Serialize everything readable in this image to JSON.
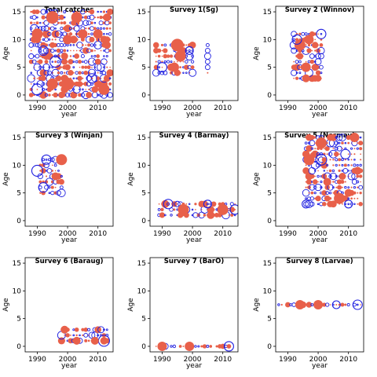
{
  "figure": {
    "colors": {
      "positive": "#e8604a",
      "negative": "#1f1fe0",
      "frame": "#000000"
    }
  },
  "chart_data": [
    {
      "type": "scatter",
      "title": "Total catches",
      "xlabel": "year",
      "ylabel": "Age",
      "xlim": [
        1986,
        2015
      ],
      "ylim": [
        -1,
        16
      ],
      "xticks": [
        1990,
        2000,
        2010
      ],
      "yticks": [
        0,
        5,
        10,
        15
      ],
      "x_range": [
        1988,
        2014
      ],
      "age_range": [
        0,
        15
      ],
      "grid": false,
      "legend": "none",
      "blobs": [
        {
          "x": 1995,
          "y": 14,
          "r": 8,
          "s": "pos"
        },
        {
          "x": 2003,
          "y": 14,
          "r": 7,
          "s": "pos"
        },
        {
          "x": 1990,
          "y": 11,
          "r": 7,
          "s": "pos"
        },
        {
          "x": 2000,
          "y": 10,
          "r": 6,
          "s": "pos"
        },
        {
          "x": 2005,
          "y": 11,
          "r": 6,
          "s": "pos"
        },
        {
          "x": 1996,
          "y": 6,
          "r": 7,
          "s": "neg"
        },
        {
          "x": 2000,
          "y": 2,
          "r": 8,
          "s": "pos"
        },
        {
          "x": 1995,
          "y": 2,
          "r": 7,
          "s": "pos"
        },
        {
          "x": 1990,
          "y": 1,
          "r": 7,
          "s": "neg"
        },
        {
          "x": 2012,
          "y": 1,
          "r": 7,
          "s": "pos"
        },
        {
          "x": 2008,
          "y": 3,
          "r": 6,
          "s": "neg"
        },
        {
          "x": 2010,
          "y": 11,
          "r": 6,
          "s": "pos"
        },
        {
          "x": 2013,
          "y": 14,
          "r": 5,
          "s": "pos"
        },
        {
          "x": 1992,
          "y": 8,
          "r": 6,
          "s": "neg"
        }
      ]
    },
    {
      "type": "scatter",
      "title": "Survey 1(Sg)",
      "xlabel": "year",
      "ylabel": "Age",
      "xlim": [
        1986,
        2015
      ],
      "ylim": [
        -1,
        16
      ],
      "xticks": [
        1990,
        2000,
        2010
      ],
      "yticks": [
        0,
        5,
        10,
        15
      ],
      "x_range": [
        1988,
        2000
      ],
      "age_range": [
        4,
        9
      ],
      "grid": false,
      "legend": "none",
      "extra_points": [
        {
          "x": 2005,
          "y": 9,
          "r": 2,
          "s": "neg"
        },
        {
          "x": 2005,
          "y": 8,
          "r": 3,
          "s": "neg"
        },
        {
          "x": 2005,
          "y": 7,
          "r": 4,
          "s": "neg"
        },
        {
          "x": 2005,
          "y": 6,
          "r": 3,
          "s": "neg"
        },
        {
          "x": 2005,
          "y": 5,
          "r": 3,
          "s": "neg"
        },
        {
          "x": 2005,
          "y": 4,
          "r": 1,
          "s": "pos"
        }
      ],
      "blobs": [
        {
          "x": 1995,
          "y": 9,
          "r": 8,
          "s": "pos"
        },
        {
          "x": 1996,
          "y": 7,
          "r": 7,
          "s": "pos"
        },
        {
          "x": 1994,
          "y": 5,
          "r": 6,
          "s": "pos"
        },
        {
          "x": 1990,
          "y": 5,
          "r": 6,
          "s": "neg"
        },
        {
          "x": 1999,
          "y": 8,
          "r": 5,
          "s": "neg"
        }
      ]
    },
    {
      "type": "scatter",
      "title": "Survey 2 (Winnov)",
      "xlabel": "year",
      "ylabel": "Age",
      "xlim": [
        1986,
        2015
      ],
      "ylim": [
        -1,
        16
      ],
      "xticks": [
        1990,
        2000,
        2010
      ],
      "yticks": [
        0,
        5,
        10,
        15
      ],
      "x_range": [
        1992,
        2001
      ],
      "age_range": [
        3,
        11
      ],
      "grid": false,
      "legend": "none",
      "blobs": [
        {
          "x": 1994,
          "y": 9,
          "r": 7,
          "s": "pos"
        },
        {
          "x": 1996,
          "y": 5,
          "r": 6,
          "s": "pos"
        },
        {
          "x": 1997,
          "y": 10,
          "r": 6,
          "s": "pos"
        },
        {
          "x": 1993,
          "y": 10,
          "r": 6,
          "s": "neg"
        },
        {
          "x": 2001,
          "y": 11,
          "r": 6,
          "s": "neg"
        },
        {
          "x": 1996,
          "y": 3,
          "r": 5,
          "s": "pos"
        }
      ]
    },
    {
      "type": "scatter",
      "title": "Survey 3 (Winjan)",
      "xlabel": "year",
      "ylabel": "Age",
      "xlim": [
        1986,
        2015
      ],
      "ylim": [
        -1,
        16
      ],
      "xticks": [
        1990,
        2000,
        2010
      ],
      "yticks": [
        0,
        5,
        10,
        15
      ],
      "x_range": [
        1991,
        1998
      ],
      "age_range": [
        5,
        11
      ],
      "grid": false,
      "legend": "none",
      "blobs": [
        {
          "x": 1998,
          "y": 11,
          "r": 7,
          "s": "pos"
        },
        {
          "x": 1990,
          "y": 9,
          "r": 7,
          "s": "neg"
        },
        {
          "x": 1993,
          "y": 11,
          "r": 6,
          "s": "neg"
        },
        {
          "x": 1992,
          "y": 6,
          "r": 6,
          "s": "neg"
        },
        {
          "x": 1996,
          "y": 8,
          "r": 5,
          "s": "pos"
        }
      ]
    },
    {
      "type": "scatter",
      "title": "Survey 4 (Barmay)",
      "xlabel": "year",
      "ylabel": "Age",
      "xlim": [
        1986,
        2015
      ],
      "ylim": [
        -1,
        16
      ],
      "xticks": [
        1990,
        2000,
        2010
      ],
      "yticks": [
        0,
        5,
        10,
        15
      ],
      "x_range": [
        1989,
        2014
      ],
      "age_range": [
        1,
        3
      ],
      "grid": false,
      "legend": "none",
      "blobs": [
        {
          "x": 1997,
          "y": 2,
          "r": 7,
          "s": "pos"
        },
        {
          "x": 2010,
          "y": 2,
          "r": 7,
          "s": "pos"
        },
        {
          "x": 1992,
          "y": 3,
          "r": 6,
          "s": "neg"
        },
        {
          "x": 2005,
          "y": 3,
          "r": 5,
          "s": "neg"
        },
        {
          "x": 2014,
          "y": 2,
          "r": 6,
          "s": "neg"
        }
      ]
    },
    {
      "type": "scatter",
      "title": "Survey 5 (Normay)",
      "xlabel": "year",
      "ylabel": "Age",
      "xlim": [
        1986,
        2015
      ],
      "ylim": [
        -1,
        16
      ],
      "xticks": [
        1990,
        2000,
        2010
      ],
      "yticks": [
        0,
        5,
        10,
        15
      ],
      "x_range": [
        1996,
        2014
      ],
      "age_range": [
        3,
        15
      ],
      "grid": false,
      "legend": "none",
      "blobs": [
        {
          "x": 2001,
          "y": 14,
          "r": 7,
          "s": "pos"
        },
        {
          "x": 1997,
          "y": 11,
          "r": 7,
          "s": "pos"
        },
        {
          "x": 2001,
          "y": 11,
          "r": 7,
          "s": "neg"
        },
        {
          "x": 2007,
          "y": 4,
          "r": 7,
          "s": "pos"
        },
        {
          "x": 2012,
          "y": 15,
          "r": 6,
          "s": "pos"
        },
        {
          "x": 2009,
          "y": 12,
          "r": 6,
          "s": "neg"
        },
        {
          "x": 2003,
          "y": 7,
          "r": 5,
          "s": "pos"
        },
        {
          "x": 1996,
          "y": 3,
          "r": 5,
          "s": "neg"
        },
        {
          "x": 2010,
          "y": 3,
          "r": 5,
          "s": "neg"
        },
        {
          "x": 2013,
          "y": 9,
          "r": 5,
          "s": "pos"
        }
      ]
    },
    {
      "type": "scatter",
      "title": "Survey 6 (Baraug)",
      "xlabel": "year",
      "ylabel": "Age",
      "xlim": [
        1986,
        2015
      ],
      "ylim": [
        -1,
        16
      ],
      "xticks": [
        1990,
        2000,
        2010
      ],
      "yticks": [
        0,
        5,
        10,
        15
      ],
      "x_range": [
        1998,
        2013
      ],
      "age_range": [
        1,
        3
      ],
      "grid": false,
      "legend": "none",
      "blobs": [
        {
          "x": 1999,
          "y": 3,
          "r": 5,
          "s": "pos"
        },
        {
          "x": 2012,
          "y": 1,
          "r": 7,
          "s": "neg"
        },
        {
          "x": 2003,
          "y": 1,
          "r": 5,
          "s": "pos"
        },
        {
          "x": 2009,
          "y": 1,
          "r": 5,
          "s": "pos"
        }
      ]
    },
    {
      "type": "scatter",
      "title": "Survey 7 (BarO)",
      "xlabel": "year",
      "ylabel": "Age",
      "xlim": [
        1986,
        2015
      ],
      "ylim": [
        -1,
        16
      ],
      "xticks": [
        1990,
        2000,
        2010
      ],
      "yticks": [
        0,
        5,
        10,
        15
      ],
      "x_range": [
        1988,
        2012
      ],
      "age_range": [
        0,
        0
      ],
      "grid": false,
      "legend": "none",
      "blobs": [
        {
          "x": 1990,
          "y": 0,
          "r": 6,
          "s": "pos"
        },
        {
          "x": 1999,
          "y": 0,
          "r": 6,
          "s": "pos"
        },
        {
          "x": 2012,
          "y": 0,
          "r": 6,
          "s": "neg"
        }
      ]
    },
    {
      "type": "scatter",
      "title": "Survey 8 (Larvae)",
      "xlabel": "year",
      "ylabel": "Age",
      "xlim": [
        1986,
        2015
      ],
      "ylim": [
        -1,
        16
      ],
      "xticks": [
        1990,
        2000,
        2010
      ],
      "yticks": [
        0,
        5,
        10,
        15
      ],
      "x_range": [
        1987,
        2014
      ],
      "age_range": [
        7.5,
        7.5
      ],
      "grid": false,
      "legend": "none",
      "blobs": [
        {
          "x": 1994,
          "y": 7.5,
          "r": 6,
          "s": "pos"
        },
        {
          "x": 2000,
          "y": 7.5,
          "r": 6,
          "s": "pos"
        },
        {
          "x": 2013,
          "y": 7.5,
          "r": 6,
          "s": "neg"
        },
        {
          "x": 2006,
          "y": 7.5,
          "r": 5,
          "s": "neg"
        }
      ]
    }
  ]
}
